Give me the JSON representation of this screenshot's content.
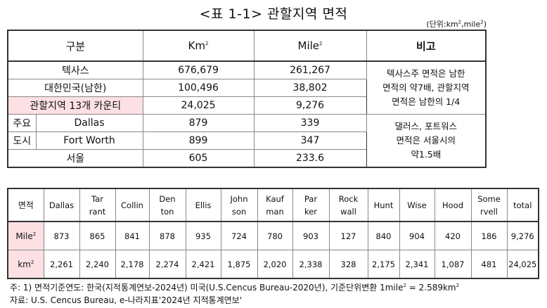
{
  "title": "<표 1-1> 관할지역 면적",
  "unit": {
    "prefix": "(단위:km",
    "mid": ",mile",
    "suffix": ")",
    "sup": "2"
  },
  "t1": {
    "headers": {
      "category": "구분",
      "km": "Km",
      "mile": "Mile",
      "note": "비고",
      "sup": "2"
    },
    "rows": [
      {
        "name": "텍사스",
        "km": "676,679",
        "mile": "261,267"
      },
      {
        "name": "대한민국(남한)",
        "km": "100,496",
        "mile": "38,802"
      },
      {
        "name": "관할지역 13개 카운티",
        "km": "24,025",
        "mile": "9,276"
      }
    ],
    "city_label_1": "주요",
    "city_label_2": "도시",
    "cities": [
      {
        "name": "Dallas",
        "km": "879",
        "mile": "339"
      },
      {
        "name": "Fort Worth",
        "km": "899",
        "mile": "347"
      }
    ],
    "seoul": {
      "name": "서울",
      "km": "605",
      "mile": "233.6"
    },
    "note1": [
      "텍사스주 면적은 남한",
      "면적의 약7배, 관할지역",
      "면적은 남한의 1/4"
    ],
    "note2": [
      "댈러스, 포트워스",
      "면적은 서울시의",
      "약1.5배"
    ]
  },
  "t2": {
    "corner": "면적",
    "columns": [
      [
        "Dallas"
      ],
      [
        "Tar",
        "rant"
      ],
      [
        "Collin"
      ],
      [
        "Den",
        "ton"
      ],
      [
        "Ellis"
      ],
      [
        "John",
        "son"
      ],
      [
        "Kauf",
        "man"
      ],
      [
        "Par",
        "ker"
      ],
      [
        "Rock",
        "wall"
      ],
      [
        "Hunt"
      ],
      [
        "Wise"
      ],
      [
        "Hood"
      ],
      [
        "Some",
        "rvell"
      ],
      [
        "total"
      ]
    ],
    "rows": [
      {
        "label": "Mile",
        "sup": "2",
        "values": [
          "873",
          "865",
          "841",
          "878",
          "935",
          "724",
          "780",
          "903",
          "127",
          "840",
          "904",
          "420",
          "186",
          "9,276"
        ]
      },
      {
        "label": "km",
        "sup": "2",
        "values": [
          "2,261",
          "2,240",
          "2,178",
          "2,274",
          "2,421",
          "1,875",
          "2,020",
          "2,338",
          "328",
          "2,175",
          "2,341",
          "1,087",
          "481",
          "24,025"
        ]
      }
    ]
  },
  "footnote1": {
    "text": "주: 1) 면적기준연도: 한국(지적통계연보-2024년) 미국(U.S.Cencus Bureau-2020년), 기준단위변환 1mile",
    "sup": "2",
    "mid": " = 2.589km",
    "sup2": "2"
  },
  "footnote2": "자료: U.S. Cencus Bureau, e-나라지표'2024년 지적통계연보'"
}
